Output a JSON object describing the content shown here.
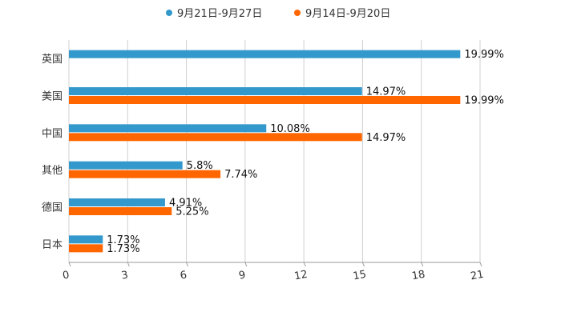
{
  "chart_data": {
    "type": "bar",
    "orientation": "horizontal",
    "categories": [
      "英国",
      "美国",
      "中国",
      "其他",
      "德国",
      "日本"
    ],
    "series": [
      {
        "name": "9月21日-9月27日",
        "color": "#3399cc",
        "values": [
          19.99,
          14.97,
          10.08,
          5.8,
          4.91,
          1.73
        ],
        "labels": [
          "19.99%",
          "14.97%",
          "10.08%",
          "5.8%",
          "4.91%",
          "1.73%"
        ]
      },
      {
        "name": "9月14日-9月20日",
        "color": "#ff6600",
        "values": [
          null,
          19.99,
          14.97,
          7.74,
          5.25,
          1.73
        ],
        "labels": [
          "",
          "19.99%",
          "14.97%",
          "7.74%",
          "5.25%",
          "1.73%"
        ]
      }
    ],
    "xlim": [
      0,
      21
    ],
    "xticks": [
      "0",
      "3",
      "6",
      "9",
      "12",
      "15",
      "18",
      "21"
    ],
    "grid": true,
    "legend": "top-center"
  }
}
